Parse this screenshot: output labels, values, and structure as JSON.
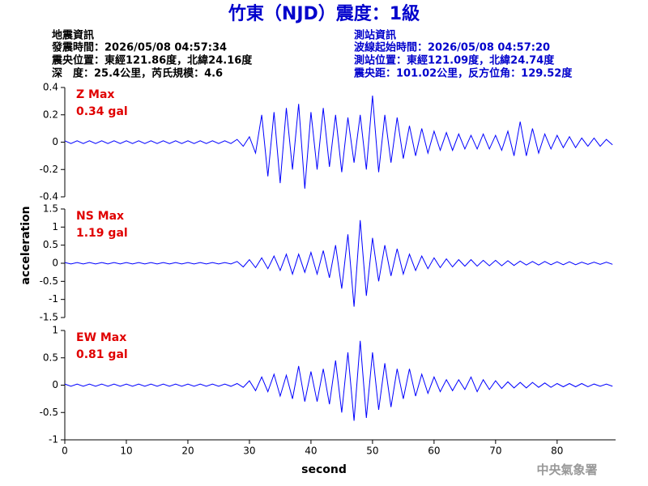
{
  "header": {
    "title": "竹東（NJD）震度：1級",
    "event": {
      "heading": "地震資訊",
      "lines": [
        "發震時間：2026/05/08 04:57:34",
        "震央位置：東經121.86度，北緯24.16度",
        "深　度：25.4公里，芮氏規模：4.6"
      ]
    },
    "station": {
      "heading": "測站資訊",
      "lines": [
        "波線起始時間：2026/05/08 04:57:20",
        "測站位置：東經121.09度，北緯24.74度",
        "震央距：101.02公里，反方位角：129.52度"
      ]
    }
  },
  "axis_labels": {
    "y": "acceleration",
    "x": "second"
  },
  "footer": "中央氣象署",
  "chart_data": [
    {
      "type": "line",
      "annotation": [
        "Z Max",
        "0.34 gal"
      ],
      "color": "#0000ff",
      "xlim": [
        0,
        89.5
      ],
      "ylim": [
        -0.4,
        0.4
      ],
      "yticks": [
        0.4,
        0.2,
        0,
        -0.2,
        -0.4
      ],
      "x": [
        0,
        1,
        2,
        3,
        4,
        5,
        6,
        7,
        8,
        9,
        10,
        11,
        12,
        13,
        14,
        15,
        16,
        17,
        18,
        19,
        20,
        21,
        22,
        23,
        24,
        25,
        26,
        27,
        28,
        29,
        30,
        31,
        32,
        33,
        34,
        35,
        36,
        37,
        38,
        39,
        40,
        41,
        42,
        43,
        44,
        45,
        46,
        47,
        48,
        49,
        50,
        51,
        52,
        53,
        54,
        55,
        56,
        57,
        58,
        59,
        60,
        61,
        62,
        63,
        64,
        65,
        66,
        67,
        68,
        69,
        70,
        71,
        72,
        73,
        74,
        75,
        76,
        77,
        78,
        79,
        80,
        81,
        82,
        83,
        84,
        85,
        86,
        87,
        88,
        89
      ],
      "values": [
        0.01,
        -0.01,
        0.01,
        -0.01,
        0.01,
        -0.01,
        0.01,
        -0.01,
        0.01,
        -0.01,
        0.01,
        -0.01,
        0.01,
        -0.01,
        0.01,
        -0.01,
        0.01,
        -0.01,
        0.01,
        -0.01,
        0.01,
        -0.01,
        0.01,
        -0.01,
        0.01,
        -0.01,
        0.01,
        -0.01,
        0.02,
        -0.03,
        0.04,
        -0.08,
        0.2,
        -0.25,
        0.22,
        -0.3,
        0.25,
        -0.2,
        0.28,
        -0.34,
        0.22,
        -0.2,
        0.25,
        -0.18,
        0.2,
        -0.22,
        0.18,
        -0.15,
        0.2,
        -0.2,
        0.34,
        -0.22,
        0.2,
        -0.15,
        0.18,
        -0.12,
        0.12,
        -0.1,
        0.1,
        -0.08,
        0.08,
        -0.06,
        0.07,
        -0.06,
        0.06,
        -0.05,
        0.05,
        -0.05,
        0.06,
        -0.05,
        0.05,
        -0.06,
        0.08,
        -0.1,
        0.15,
        -0.1,
        0.1,
        -0.08,
        0.06,
        -0.05,
        0.05,
        -0.04,
        0.04,
        -0.04,
        0.03,
        -0.03,
        0.03,
        -0.03,
        0.02,
        -0.02
      ]
    },
    {
      "type": "line",
      "annotation": [
        "NS Max",
        "1.19 gal"
      ],
      "color": "#0000ff",
      "xlim": [
        0,
        89.5
      ],
      "ylim": [
        -1.5,
        1.5
      ],
      "yticks": [
        1.5,
        1,
        0.5,
        0,
        -0.5,
        -1,
        -1.5
      ],
      "x": [
        0,
        1,
        2,
        3,
        4,
        5,
        6,
        7,
        8,
        9,
        10,
        11,
        12,
        13,
        14,
        15,
        16,
        17,
        18,
        19,
        20,
        21,
        22,
        23,
        24,
        25,
        26,
        27,
        28,
        29,
        30,
        31,
        32,
        33,
        34,
        35,
        36,
        37,
        38,
        39,
        40,
        41,
        42,
        43,
        44,
        45,
        46,
        47,
        48,
        49,
        50,
        51,
        52,
        53,
        54,
        55,
        56,
        57,
        58,
        59,
        60,
        61,
        62,
        63,
        64,
        65,
        66,
        67,
        68,
        69,
        70,
        71,
        72,
        73,
        74,
        75,
        76,
        77,
        78,
        79,
        80,
        81,
        82,
        83,
        84,
        85,
        86,
        87,
        88,
        89
      ],
      "values": [
        0.02,
        -0.02,
        0.02,
        -0.02,
        0.02,
        -0.02,
        0.02,
        -0.02,
        0.02,
        -0.02,
        0.02,
        -0.02,
        0.02,
        -0.02,
        0.02,
        -0.02,
        0.02,
        -0.02,
        0.02,
        -0.02,
        0.02,
        -0.02,
        0.02,
        -0.02,
        0.02,
        -0.02,
        0.02,
        -0.02,
        0.05,
        -0.1,
        0.1,
        -0.12,
        0.15,
        -0.15,
        0.2,
        -0.2,
        0.25,
        -0.3,
        0.25,
        -0.25,
        0.3,
        -0.3,
        0.35,
        -0.4,
        0.5,
        -0.7,
        0.8,
        -1.2,
        1.19,
        -0.9,
        0.7,
        -0.5,
        0.5,
        -0.35,
        0.4,
        -0.3,
        0.25,
        -0.2,
        0.2,
        -0.15,
        0.15,
        -0.12,
        0.12,
        -0.1,
        0.1,
        -0.08,
        0.1,
        -0.08,
        0.08,
        -0.07,
        0.08,
        -0.07,
        0.07,
        -0.06,
        0.06,
        -0.05,
        0.05,
        -0.05,
        0.05,
        -0.04,
        0.04,
        -0.04,
        0.04,
        -0.04,
        0.03,
        -0.03,
        0.03,
        -0.03,
        0.03,
        -0.03
      ]
    },
    {
      "type": "line",
      "annotation": [
        "EW Max",
        "0.81 gal"
      ],
      "color": "#0000ff",
      "xlim": [
        0,
        89.5
      ],
      "ylim": [
        -1,
        1
      ],
      "yticks": [
        1,
        0.5,
        0,
        -0.5,
        -1
      ],
      "xticks": [
        0,
        10,
        20,
        30,
        40,
        50,
        60,
        70,
        80
      ],
      "x": [
        0,
        1,
        2,
        3,
        4,
        5,
        6,
        7,
        8,
        9,
        10,
        11,
        12,
        13,
        14,
        15,
        16,
        17,
        18,
        19,
        20,
        21,
        22,
        23,
        24,
        25,
        26,
        27,
        28,
        29,
        30,
        31,
        32,
        33,
        34,
        35,
        36,
        37,
        38,
        39,
        40,
        41,
        42,
        43,
        44,
        45,
        46,
        47,
        48,
        49,
        50,
        51,
        52,
        53,
        54,
        55,
        56,
        57,
        58,
        59,
        60,
        61,
        62,
        63,
        64,
        65,
        66,
        67,
        68,
        69,
        70,
        71,
        72,
        73,
        74,
        75,
        76,
        77,
        78,
        79,
        80,
        81,
        82,
        83,
        84,
        85,
        86,
        87,
        88,
        89
      ],
      "values": [
        0.02,
        -0.02,
        0.02,
        -0.02,
        0.02,
        -0.02,
        0.02,
        -0.02,
        0.02,
        -0.02,
        0.02,
        -0.02,
        0.02,
        -0.02,
        0.02,
        -0.02,
        0.02,
        -0.02,
        0.02,
        -0.02,
        0.02,
        -0.02,
        0.02,
        -0.02,
        0.02,
        -0.02,
        0.02,
        -0.02,
        0.03,
        -0.04,
        0.08,
        -0.1,
        0.15,
        -0.12,
        0.2,
        -0.2,
        0.18,
        -0.25,
        0.35,
        -0.3,
        0.25,
        -0.3,
        0.3,
        -0.35,
        0.45,
        -0.5,
        0.6,
        -0.65,
        0.81,
        -0.6,
        0.6,
        -0.45,
        0.4,
        -0.4,
        0.3,
        -0.25,
        0.3,
        -0.2,
        0.2,
        -0.15,
        0.15,
        -0.12,
        0.1,
        -0.1,
        0.1,
        -0.08,
        0.15,
        -0.12,
        0.1,
        -0.08,
        0.08,
        -0.06,
        0.06,
        -0.05,
        0.05,
        -0.05,
        0.05,
        -0.04,
        0.04,
        -0.04,
        0.03,
        -0.03,
        0.03,
        -0.03,
        0.03,
        -0.03,
        0.02,
        -0.02,
        0.02,
        -0.02
      ]
    }
  ]
}
